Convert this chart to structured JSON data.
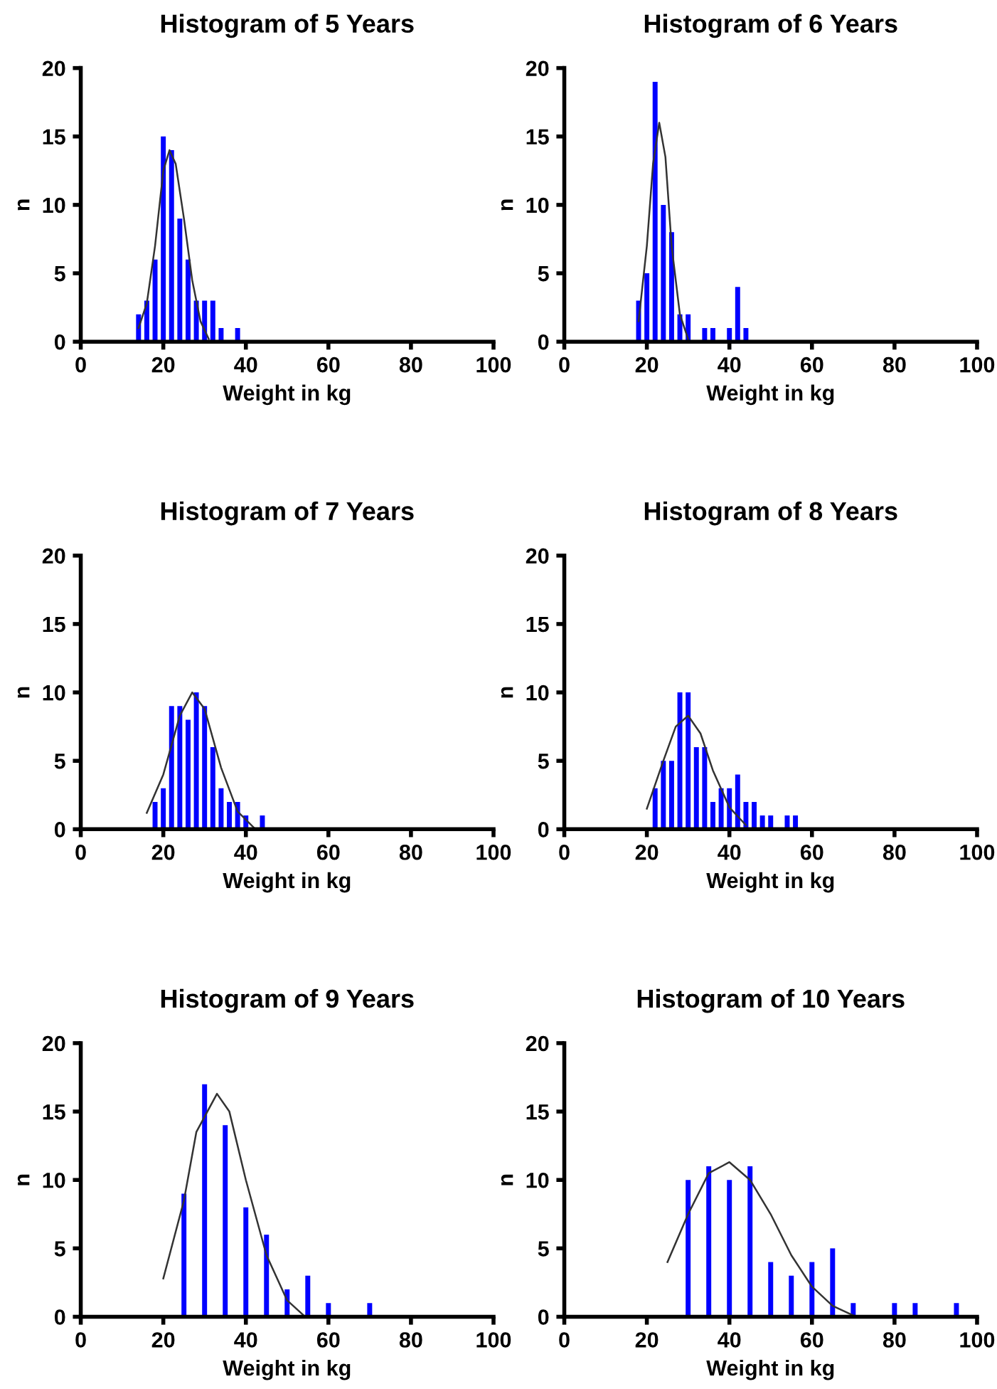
{
  "chart_data": [
    {
      "type": "bar",
      "title": "Histogram of 5 Years",
      "xlabel": "Weight in kg",
      "ylabel": "n",
      "xlim": [
        0,
        100
      ],
      "xticks": [
        0,
        20,
        40,
        60,
        80,
        100
      ],
      "ylim": [
        0,
        20
      ],
      "yticks": [
        0,
        5,
        10,
        15,
        20
      ],
      "grid": false,
      "legend": false,
      "series": [
        {
          "color": "#0000ff",
          "x": [
            14,
            16,
            18,
            20,
            22,
            24,
            26,
            28,
            30,
            32,
            34,
            38
          ],
          "values": [
            2,
            3,
            6,
            15,
            14,
            9,
            6,
            3,
            3,
            3,
            1,
            1
          ]
        },
        {
          "type": "line",
          "color": "#333333",
          "x": [
            14,
            16,
            18,
            20,
            21.5,
            23,
            25,
            27,
            29,
            31
          ],
          "values": [
            1,
            2.8,
            7,
            12.5,
            14,
            13,
            9,
            4.5,
            1.5,
            0.2
          ]
        }
      ]
    },
    {
      "type": "bar",
      "title": "Histogram of 6 Years",
      "xlabel": "Weight in kg",
      "ylabel": "n",
      "xlim": [
        0,
        100
      ],
      "xticks": [
        0,
        20,
        40,
        60,
        80,
        100
      ],
      "ylim": [
        0,
        20
      ],
      "yticks": [
        0,
        5,
        10,
        15,
        20
      ],
      "grid": false,
      "legend": false,
      "series": [
        {
          "color": "#0000ff",
          "x": [
            18,
            20,
            22,
            24,
            26,
            28,
            30,
            34,
            36,
            40,
            42,
            44
          ],
          "values": [
            3,
            5,
            19,
            10,
            8,
            2,
            2,
            1,
            1,
            1,
            4,
            1
          ]
        },
        {
          "type": "line",
          "color": "#333333",
          "x": [
            18,
            20,
            21.5,
            23,
            24.5,
            26,
            28,
            30
          ],
          "values": [
            1.5,
            7,
            13,
            16,
            13.5,
            7,
            2,
            0.2
          ]
        }
      ]
    },
    {
      "type": "bar",
      "title": "Histogram of 7 Years",
      "xlabel": "Weight in kg",
      "ylabel": "n",
      "xlim": [
        0,
        100
      ],
      "xticks": [
        0,
        20,
        40,
        60,
        80,
        100
      ],
      "ylim": [
        0,
        20
      ],
      "yticks": [
        0,
        5,
        10,
        15,
        20
      ],
      "grid": false,
      "legend": false,
      "series": [
        {
          "color": "#0000ff",
          "x": [
            18,
            20,
            22,
            24,
            26,
            28,
            30,
            32,
            34,
            36,
            38,
            40,
            44
          ],
          "values": [
            2,
            3,
            9,
            9,
            8,
            10,
            9,
            6,
            3,
            2,
            2,
            1,
            1
          ]
        },
        {
          "type": "line",
          "color": "#333333",
          "x": [
            16,
            20,
            24,
            27,
            30,
            34,
            38,
            42
          ],
          "values": [
            1.2,
            4,
            8.3,
            10,
            8.8,
            4.5,
            1.3,
            0.1
          ]
        }
      ]
    },
    {
      "type": "bar",
      "title": "Histogram of 8 Years",
      "xlabel": "Weight in kg",
      "ylabel": "n",
      "xlim": [
        0,
        100
      ],
      "xticks": [
        0,
        20,
        40,
        60,
        80,
        100
      ],
      "ylim": [
        0,
        20
      ],
      "yticks": [
        0,
        5,
        10,
        15,
        20
      ],
      "grid": false,
      "legend": false,
      "series": [
        {
          "color": "#0000ff",
          "x": [
            22,
            24,
            26,
            28,
            30,
            32,
            34,
            36,
            38,
            40,
            42,
            44,
            46,
            48,
            50,
            54,
            56
          ],
          "values": [
            3,
            5,
            5,
            10,
            10,
            6,
            6,
            2,
            3,
            3,
            4,
            2,
            2,
            1,
            1,
            1,
            1
          ]
        },
        {
          "type": "line",
          "color": "#333333",
          "x": [
            20,
            24,
            27,
            30,
            33,
            36,
            40,
            44
          ],
          "values": [
            1.5,
            5,
            7.5,
            8.3,
            7,
            4.3,
            1.6,
            0.3
          ]
        }
      ]
    },
    {
      "type": "bar",
      "title": "Histogram of 9 Years",
      "xlabel": "Weight in kg",
      "ylabel": "n",
      "xlim": [
        0,
        100
      ],
      "xticks": [
        0,
        20,
        40,
        60,
        80,
        100
      ],
      "ylim": [
        0,
        20
      ],
      "yticks": [
        0,
        5,
        10,
        15,
        20
      ],
      "grid": false,
      "legend": false,
      "series": [
        {
          "color": "#0000ff",
          "x": [
            25,
            30,
            35,
            40,
            45,
            50,
            55,
            60,
            70
          ],
          "values": [
            9,
            17,
            14,
            8,
            6,
            2,
            3,
            1,
            1
          ]
        },
        {
          "type": "line",
          "color": "#333333",
          "x": [
            20,
            25,
            28,
            33,
            36,
            40,
            45,
            50,
            54
          ],
          "values": [
            2.8,
            8.5,
            13.5,
            16.3,
            15,
            10,
            4.5,
            1.2,
            0.1
          ]
        }
      ]
    },
    {
      "type": "bar",
      "title": "Histogram of 10 Years",
      "xlabel": "Weight in kg",
      "ylabel": "n",
      "xlim": [
        0,
        100
      ],
      "xticks": [
        0,
        20,
        40,
        60,
        80,
        100
      ],
      "ylim": [
        0,
        20
      ],
      "yticks": [
        0,
        5,
        10,
        15,
        20
      ],
      "grid": false,
      "legend": false,
      "series": [
        {
          "color": "#0000ff",
          "x": [
            30,
            35,
            40,
            45,
            50,
            55,
            60,
            65,
            70,
            80,
            85,
            95
          ],
          "values": [
            10,
            11,
            10,
            11,
            4,
            3,
            4,
            5,
            1,
            1,
            1,
            1
          ]
        },
        {
          "type": "line",
          "color": "#333333",
          "x": [
            25,
            30,
            35,
            40,
            45,
            50,
            55,
            60,
            65,
            70
          ],
          "values": [
            4,
            7.5,
            10.5,
            11.3,
            10,
            7.5,
            4.5,
            2.2,
            0.8,
            0.1
          ]
        }
      ]
    }
  ]
}
